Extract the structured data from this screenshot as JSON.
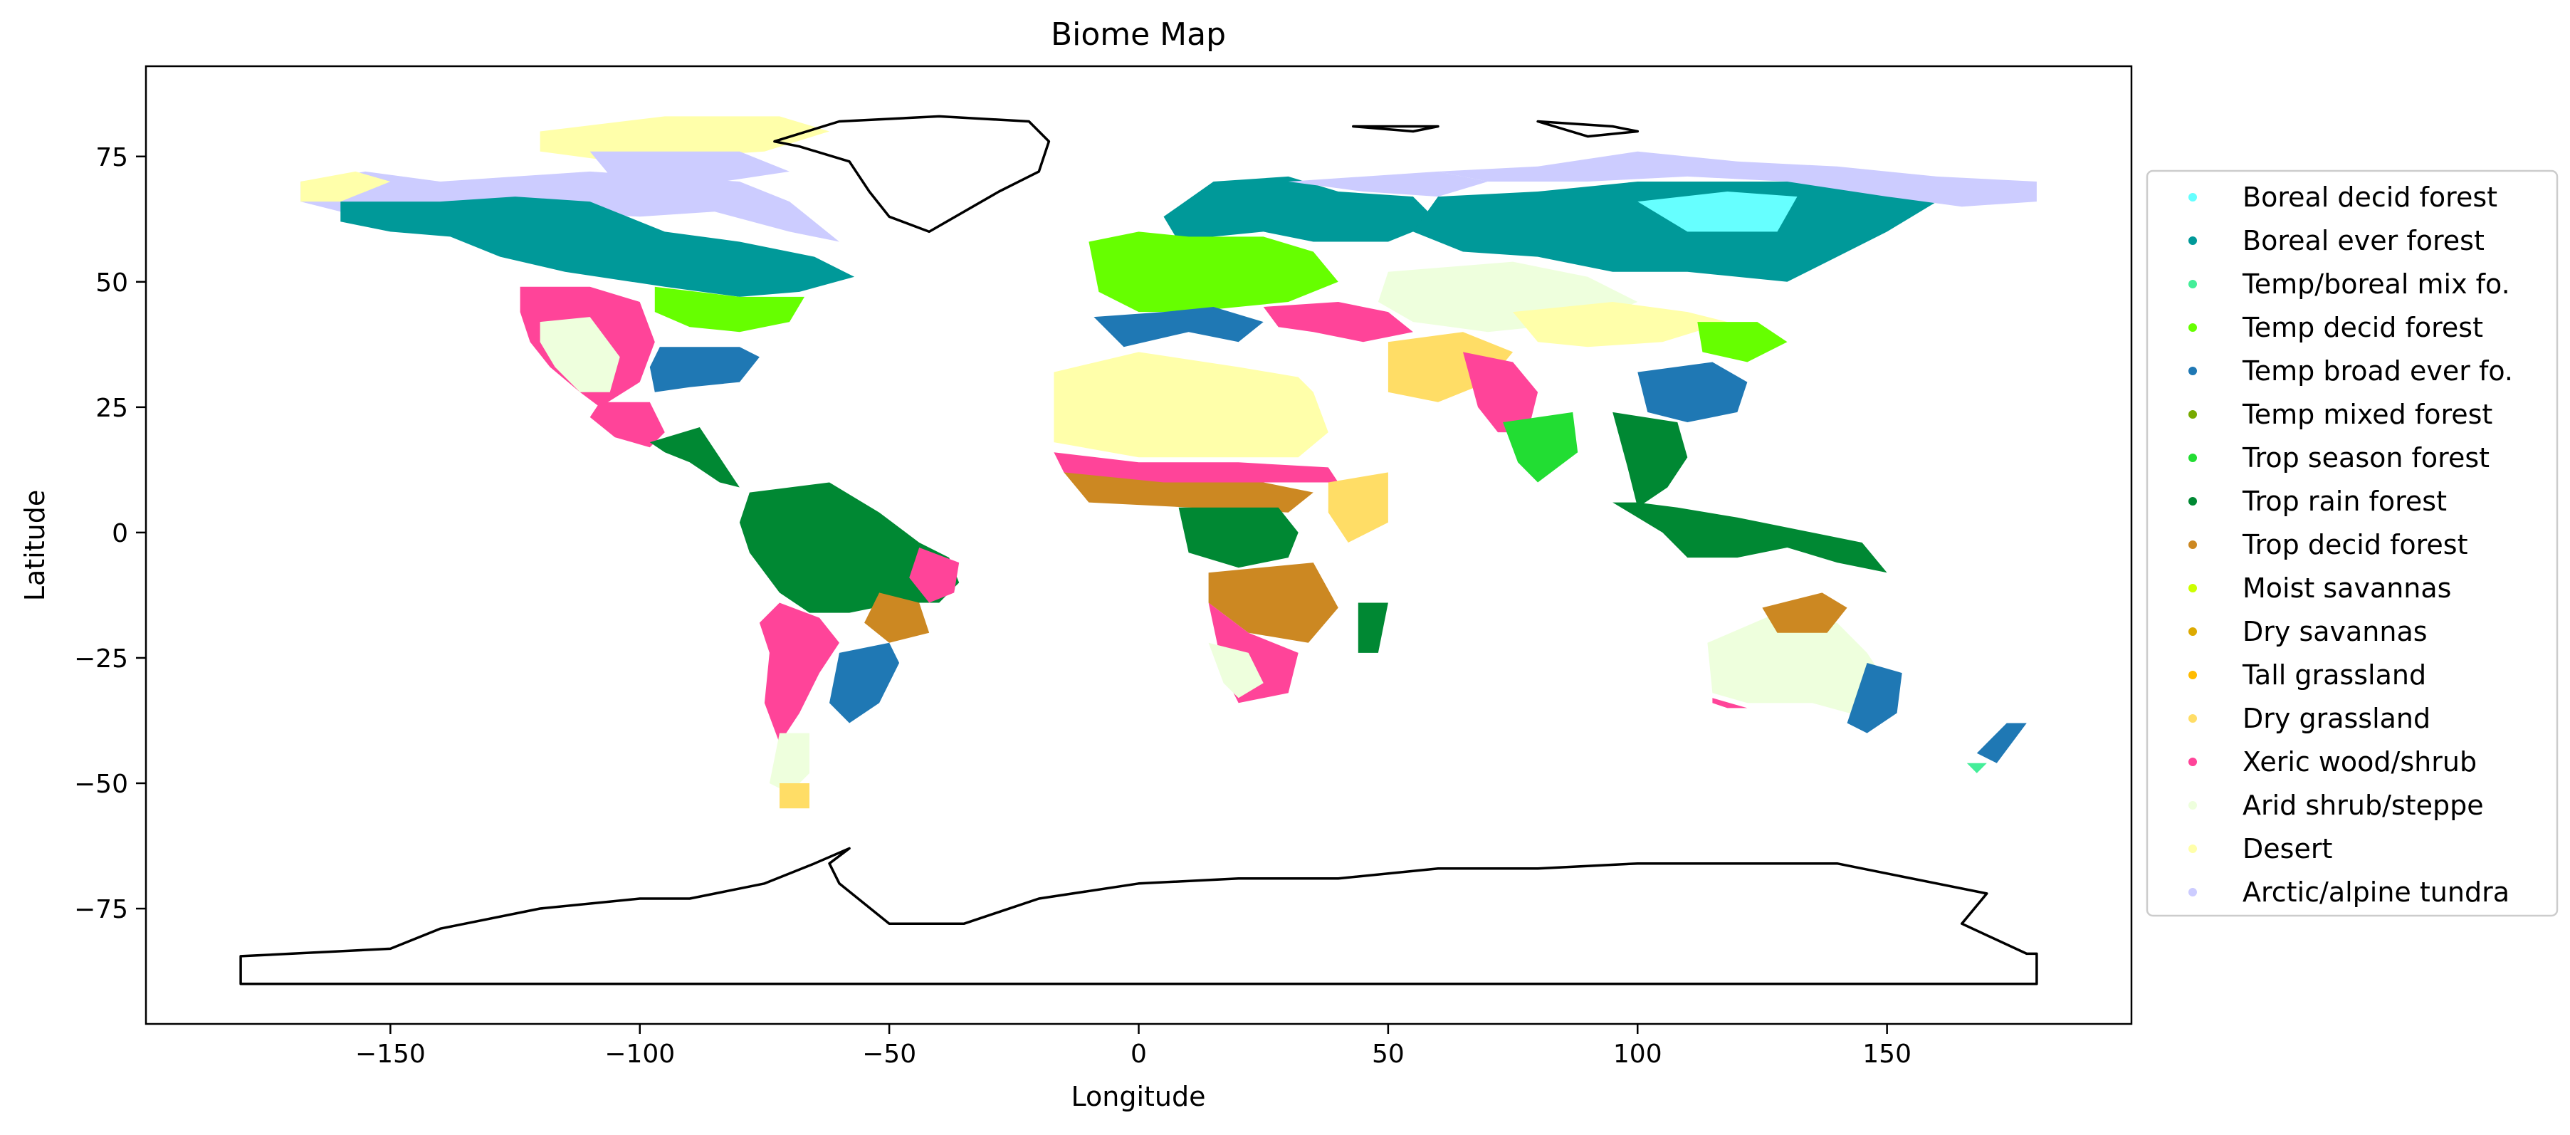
{
  "chart_data": {
    "type": "scatter",
    "title": "Biome Map",
    "xlabel": "Longitude",
    "ylabel": "Latitude",
    "xlim": [
      -199,
      199
    ],
    "ylim": [
      -98,
      93
    ],
    "xticks": [
      -150,
      -100,
      -50,
      0,
      50,
      100,
      150
    ],
    "yticks": [
      75,
      50,
      25,
      0,
      -25,
      -50,
      -75
    ],
    "xtick_labels": [
      "−150",
      "−100",
      "−50",
      "0",
      "50",
      "100",
      "150"
    ],
    "ytick_labels": [
      "75",
      "50",
      "25",
      "0",
      "−25",
      "−50",
      "−75"
    ],
    "grid": false,
    "legend_position": "right",
    "series": [
      {
        "name": "Boreal decid forest",
        "color": "#66ffff"
      },
      {
        "name": "Boreal ever forest",
        "color": "#009999"
      },
      {
        "name": "Temp/boreal mix fo.",
        "color": "#44ee99"
      },
      {
        "name": "Temp decid forest",
        "color": "#66ff00"
      },
      {
        "name": "Temp broad ever fo.",
        "color": "#1f78b4"
      },
      {
        "name": "Temp mixed forest",
        "color": "#77aa00"
      },
      {
        "name": "Trop season forest",
        "color": "#22dd33"
      },
      {
        "name": "Trop rain forest",
        "color": "#008833"
      },
      {
        "name": "Trop decid forest",
        "color": "#cc8822"
      },
      {
        "name": "Moist savannas",
        "color": "#ccff00"
      },
      {
        "name": "Dry savannas",
        "color": "#ddaa00"
      },
      {
        "name": "Tall grassland",
        "color": "#ffbb00"
      },
      {
        "name": "Dry grassland",
        "color": "#ffdd66"
      },
      {
        "name": "Xeric wood/shrub",
        "color": "#ff4499"
      },
      {
        "name": "Arid shrub/steppe",
        "color": "#eeffdd"
      },
      {
        "name": "Desert",
        "color": "#ffffaa"
      },
      {
        "name": "Arctic/alpine tundra",
        "color": "#ccccff"
      }
    ]
  }
}
